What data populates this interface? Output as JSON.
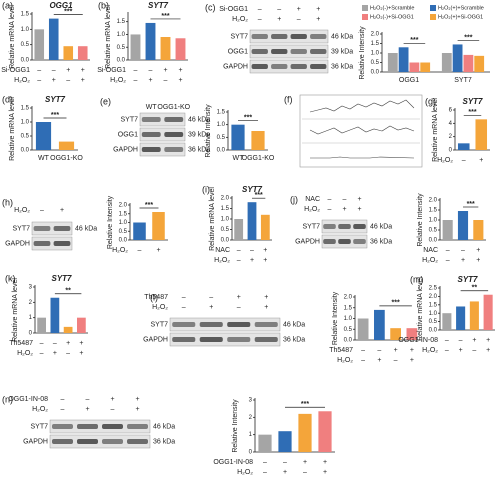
{
  "chart_data": [
    {
      "type": "bar",
      "panel": "(a)",
      "title": "OGG1",
      "ylabel": "Relative mRNA level",
      "values": [
        1.0,
        1.35,
        0.45,
        0.45
      ],
      "colors": [
        "#a5a5a5",
        "#2f6db5",
        "#f4a53a",
        "#f07f7f"
      ],
      "ylim": [
        0,
        1.5
      ],
      "yticks": [
        {
          "value": 0,
          "label": "0.0"
        },
        0.5,
        {
          "value": 1,
          "label": "1.0"
        },
        1.5
      ],
      "rows": [
        {
          "label": "Si-OGG1",
          "signs": [
            "–",
            "–",
            "+",
            "+"
          ]
        },
        {
          "label": "H₂O₂",
          "signs": [
            "–",
            "+",
            "–",
            "+"
          ]
        }
      ],
      "significance": [
        "***"
      ]
    },
    {
      "type": "bar",
      "panel": "(b)",
      "title": "SYT7",
      "ylabel": "Relative mRNA level",
      "values": [
        1.0,
        1.45,
        0.9,
        0.85
      ],
      "colors": [
        "#a5a5a5",
        "#2f6db5",
        "#f4a53a",
        "#f07f7f"
      ],
      "ylim": [
        0,
        1.8
      ],
      "yticks": [
        {
          "value": 0,
          "label": "0.0"
        },
        0.5,
        {
          "value": 1,
          "label": "1.0"
        },
        1.5
      ],
      "rows": [
        {
          "label": "Si-OGG1",
          "signs": [
            "–",
            "–",
            "+",
            "+"
          ]
        },
        {
          "label": "H₂O₂",
          "signs": [
            "–",
            "+",
            "–",
            "+"
          ]
        }
      ],
      "significance": [
        "***"
      ]
    },
    {
      "type": "bar",
      "ylabel": "Relative Intensity",
      "categories": [
        "OGG1",
        "SYT7"
      ],
      "series": [
        {
          "name": "H₂O₂(-)+Scramble",
          "color": "#a5a5a5",
          "values": [
            1.0,
            1.0
          ]
        },
        {
          "name": "H₂O₂(+)+Scramble",
          "color": "#2f6db5",
          "values": [
            1.3,
            1.45
          ]
        },
        {
          "name": "H₂O₂(-)+Si-OGG1",
          "color": "#f07f7f",
          "values": [
            0.5,
            0.9
          ]
        },
        {
          "name": "H₂O₂(+)+Si-OGG1",
          "color": "#f4a53a",
          "values": [
            0.5,
            0.85
          ]
        }
      ],
      "ylim": [
        0,
        2
      ],
      "yticks": [
        {
          "value": 0,
          "label": "0.0"
        },
        0.5,
        {
          "value": 1,
          "label": "1.0"
        },
        1.5,
        {
          "value": 2,
          "label": "2.0"
        }
      ],
      "significance": [
        "***",
        "***"
      ]
    },
    {
      "type": "bar",
      "panel": "(d)",
      "title": "SYT7",
      "ylabel": "Relative mRNA level",
      "categories": [
        "WT",
        "OGG1-KO"
      ],
      "values": [
        1.0,
        0.3
      ],
      "colors": [
        "#2f6db5",
        "#f4a53a"
      ],
      "ylim": [
        0,
        1.5
      ],
      "yticks": [
        {
          "value": 0,
          "label": "0.0"
        },
        0.5,
        {
          "value": 1,
          "label": "1.0"
        },
        1.5
      ],
      "significance": [
        "***"
      ]
    },
    {
      "type": "bar",
      "ylabel": "Relative Intensity",
      "categories": [
        "WT",
        "OGG1-KO"
      ],
      "values": [
        1.0,
        0.75
      ],
      "colors": [
        "#2f6db5",
        "#f4a53a"
      ],
      "ylim": [
        0,
        1.5
      ],
      "yticks": [
        {
          "value": 0,
          "label": "0.0"
        },
        0.5,
        {
          "value": 1,
          "label": "1.0"
        },
        1.5
      ],
      "significance": [
        "***"
      ]
    },
    {
      "type": "bar",
      "panel": "(g)",
      "title": "SYT7",
      "ylabel": "Relative mRNA level",
      "values": [
        1.0,
        4.6
      ],
      "colors": [
        "#2f6db5",
        "#f4a53a"
      ],
      "ylim": [
        0,
        6
      ],
      "yticks": [
        0,
        2,
        4,
        6
      ],
      "rows": [
        {
          "label": "H₂O₂",
          "signs": [
            "–",
            "+"
          ]
        }
      ],
      "significance": [
        "***"
      ]
    },
    {
      "type": "bar",
      "ylabel": "Relative Intensity",
      "values": [
        1.0,
        1.6
      ],
      "colors": [
        "#2f6db5",
        "#f4a53a"
      ],
      "ylim": [
        0,
        2
      ],
      "yticks": [
        {
          "value": 0,
          "label": "0.0"
        },
        0.5,
        {
          "value": 1,
          "label": "1.0"
        },
        1.5,
        {
          "value": 2,
          "label": "2.0"
        }
      ],
      "rows": [
        {
          "label": "H₂O₂",
          "signs": [
            "–",
            "+"
          ]
        }
      ],
      "significance": [
        "***"
      ]
    },
    {
      "type": "bar",
      "panel": "(i)",
      "title": "SYT7",
      "ylabel": "Relative mRNA level",
      "values": [
        1.0,
        1.8,
        1.2
      ],
      "colors": [
        "#a5a5a5",
        "#2f6db5",
        "#f4a53a"
      ],
      "ylim": [
        0,
        2
      ],
      "yticks": [
        {
          "value": 0,
          "label": "0.0"
        },
        0.5,
        {
          "value": 1,
          "label": "1.0"
        },
        1.5,
        {
          "value": 2,
          "label": "2.0"
        }
      ],
      "rows": [
        {
          "label": "NAC",
          "signs": [
            "–",
            "–",
            "+"
          ]
        },
        {
          "label": "H₂O₂",
          "signs": [
            "–",
            "+",
            "+"
          ]
        }
      ],
      "significance": [
        "***"
      ]
    },
    {
      "type": "bar",
      "ylabel": "Relative Intensity",
      "values": [
        1.0,
        1.45,
        1.0
      ],
      "colors": [
        "#a5a5a5",
        "#2f6db5",
        "#f4a53a"
      ],
      "ylim": [
        0,
        2
      ],
      "yticks": [
        {
          "value": 0,
          "label": "0.0"
        },
        0.5,
        {
          "value": 1,
          "label": "1.0"
        },
        1.5,
        {
          "value": 2,
          "label": "2.0"
        }
      ],
      "rows": [
        {
          "label": "NAC",
          "signs": [
            "–",
            "–",
            "+"
          ]
        },
        {
          "label": "H₂O₂",
          "signs": [
            "–",
            "+",
            "+"
          ]
        }
      ],
      "significance": [
        "***"
      ]
    },
    {
      "type": "bar",
      "panel": "(k)",
      "title": "SYT7",
      "ylabel": "Relative mRNA level",
      "values": [
        1.0,
        2.3,
        0.4,
        1.0
      ],
      "colors": [
        "#a5a5a5",
        "#2f6db5",
        "#f4a53a",
        "#f07f7f"
      ],
      "ylim": [
        0,
        3
      ],
      "yticks": [
        0,
        1,
        2,
        3
      ],
      "rows": [
        {
          "label": "Th5487",
          "signs": [
            "–",
            "–",
            "+",
            "+"
          ]
        },
        {
          "label": "H₂O₂",
          "signs": [
            "–",
            "+",
            "–",
            "+"
          ]
        }
      ],
      "significance": [
        "**"
      ]
    },
    {
      "type": "bar",
      "ylabel": "Relative Intensity",
      "values": [
        1.0,
        1.4,
        0.55,
        0.55
      ],
      "colors": [
        "#a5a5a5",
        "#2f6db5",
        "#f4a53a",
        "#f07f7f"
      ],
      "ylim": [
        0,
        2
      ],
      "yticks": [
        {
          "value": 0,
          "label": "0.0"
        },
        0.5,
        {
          "value": 1,
          "label": "1.0"
        },
        1.5,
        {
          "value": 2,
          "label": "2.0"
        }
      ],
      "rows": [
        {
          "label": "Th5487",
          "signs": [
            "–",
            "–",
            "+",
            "+"
          ]
        },
        {
          "label": "H₂O₂",
          "signs": [
            "–",
            "+",
            "–",
            "+"
          ]
        }
      ],
      "significance": [
        "***"
      ]
    },
    {
      "type": "bar",
      "panel": "(m)",
      "title": "SYT7",
      "ylabel": "Relative mRNA level",
      "values": [
        1.0,
        1.4,
        1.7,
        2.1
      ],
      "colors": [
        "#a5a5a5",
        "#2f6db5",
        "#f4a53a",
        "#f07f7f"
      ],
      "ylim": [
        0,
        2.5
      ],
      "yticks": [
        {
          "value": 0,
          "label": "0.0"
        },
        0.5,
        {
          "value": 1,
          "label": "1.0"
        },
        1.5,
        {
          "value": 2,
          "label": "2.0"
        },
        2.5
      ],
      "rows": [
        {
          "label": "OGG1-IN-08",
          "signs": [
            "–",
            "–",
            "+",
            "+"
          ]
        },
        {
          "label": "H₂O₂",
          "signs": [
            "–",
            "+",
            "–",
            "+"
          ]
        }
      ],
      "significance": [
        "**"
      ]
    },
    {
      "type": "bar",
      "ylabel": "Relative Intensity",
      "values": [
        1.0,
        1.2,
        2.2,
        2.35
      ],
      "colors": [
        "#a5a5a5",
        "#2f6db5",
        "#f4a53a",
        "#f07f7f"
      ],
      "ylim": [
        0,
        3
      ],
      "yticks": [
        0,
        1,
        2,
        3
      ],
      "rows": [
        {
          "label": "OGG1-IN-08",
          "signs": [
            "–",
            "–",
            "+",
            "+"
          ]
        },
        {
          "label": "H₂O₂",
          "signs": [
            "–",
            "+",
            "–",
            "+"
          ]
        }
      ],
      "significance": [
        "***"
      ]
    }
  ],
  "blots": [
    {
      "panel": "(c)",
      "rows": [
        {
          "label": "Si-OGG1",
          "signs": [
            "–",
            "–",
            "+",
            "+"
          ]
        },
        {
          "label": "H₂O₂",
          "signs": [
            "–",
            "+",
            "–",
            "+"
          ]
        }
      ],
      "bands": [
        {
          "name": "SYT7",
          "size": "46 kDa"
        },
        {
          "name": "OGG1",
          "size": "39 kDa"
        },
        {
          "name": "GAPDH",
          "size": "36 kDa"
        }
      ]
    },
    {
      "panel": "(e)",
      "lanes": [
        "WT",
        "OGG1-KO"
      ],
      "bands": [
        {
          "name": "SYT7",
          "size": "46 kDa"
        },
        {
          "name": "OGG1",
          "size": "39 kDa"
        },
        {
          "name": "GAPDH",
          "size": "36 kDa"
        }
      ]
    },
    {
      "panel": "(h)",
      "rows": [
        {
          "label": "H₂O₂",
          "signs": [
            "–",
            "+"
          ]
        }
      ],
      "bands": [
        {
          "name": "SYT7",
          "size": "46 kDa"
        },
        {
          "name": "GAPDH"
        }
      ]
    },
    {
      "panel": "(j)",
      "rows": [
        {
          "label": "NAC",
          "signs": [
            "–",
            "–",
            "+"
          ]
        },
        {
          "label": "H₂O₂",
          "signs": [
            "–",
            "+",
            "+"
          ]
        }
      ],
      "bands": [
        {
          "name": "SYT7",
          "size": "46 kDa"
        },
        {
          "name": "GAPDH",
          "size": "36 kDa"
        }
      ]
    },
    {
      "panel": "(l)",
      "rows": [
        {
          "label": "Th5487",
          "signs": [
            "–",
            "–",
            "+",
            "+"
          ]
        },
        {
          "label": "H₂O₂",
          "signs": [
            "–",
            "+",
            "–",
            "+"
          ]
        }
      ],
      "bands": [
        {
          "name": "SYT7",
          "size": "46 kDa"
        },
        {
          "name": "GAPDH",
          "size": "36 kDa"
        }
      ]
    },
    {
      "panel": "(n)",
      "rows": [
        {
          "label": "OGG1-IN-08",
          "signs": [
            "–",
            "–",
            "+",
            "+"
          ]
        },
        {
          "label": "H₂O₂",
          "signs": [
            "–",
            "+",
            "–",
            "+"
          ]
        }
      ],
      "bands": [
        {
          "name": "SYT7",
          "size": "46 kDa"
        },
        {
          "name": "GAPDH",
          "size": "36 kDa"
        }
      ]
    }
  ],
  "sequence_panel": {
    "panel": "(f)"
  }
}
